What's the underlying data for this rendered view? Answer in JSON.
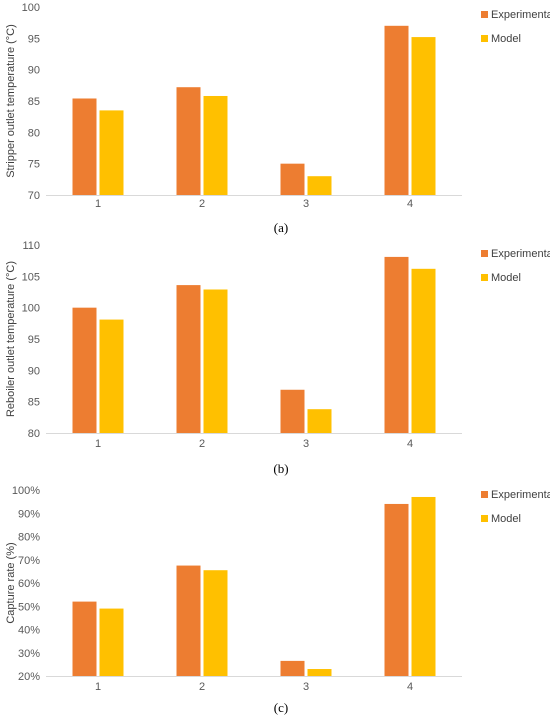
{
  "colors": {
    "experimental": "#ED7D31",
    "model": "#FFC000",
    "axis": "#D9D9D9",
    "text": "#595959"
  },
  "chart_data": [
    {
      "type": "bar",
      "panel_label": "(a)",
      "categories": [
        "1",
        "2",
        "3",
        "4"
      ],
      "series": [
        {
          "name": "Experimental",
          "values": [
            85.4,
            87.2,
            75.0,
            97.0
          ]
        },
        {
          "name": "Model",
          "values": [
            83.5,
            85.8,
            73.0,
            95.2
          ]
        }
      ],
      "ylabel": "Stripper outlet temperature (°C)",
      "xlabel": "",
      "ylim": [
        70,
        100
      ],
      "yticks": [
        70,
        75,
        80,
        85,
        90,
        95,
        100
      ],
      "ytick_labels": [
        "70",
        "75",
        "80",
        "85",
        "90",
        "95",
        "100"
      ],
      "grid": false,
      "legend": "right"
    },
    {
      "type": "bar",
      "panel_label": "(b)",
      "categories": [
        "1",
        "2",
        "3",
        "4"
      ],
      "series": [
        {
          "name": "Experimental",
          "values": [
            100.0,
            103.6,
            86.9,
            108.1
          ]
        },
        {
          "name": "Model",
          "values": [
            98.1,
            102.9,
            83.8,
            106.2
          ]
        }
      ],
      "ylabel": "Reboiler outlet temperature (°C)",
      "xlabel": "",
      "ylim": [
        80,
        110
      ],
      "yticks": [
        80,
        85,
        90,
        95,
        100,
        105,
        110
      ],
      "ytick_labels": [
        "80",
        "85",
        "90",
        "95",
        "100",
        "105",
        "110"
      ],
      "grid": false,
      "legend": "right"
    },
    {
      "type": "bar",
      "panel_label": "(c)",
      "categories": [
        "1",
        "2",
        "3",
        "4"
      ],
      "series": [
        {
          "name": "Experimental",
          "values": [
            52,
            67.5,
            26.5,
            94
          ]
        },
        {
          "name": "Model",
          "values": [
            49,
            65.5,
            23,
            97
          ]
        }
      ],
      "ylabel": "Capture rate (%)",
      "xlabel": "",
      "ylim": [
        20,
        100
      ],
      "yticks": [
        20,
        30,
        40,
        50,
        60,
        70,
        80,
        90,
        100
      ],
      "ytick_labels": [
        "20%",
        "30%",
        "40%",
        "50%",
        "60%",
        "70%",
        "80%",
        "90%",
        "100%"
      ],
      "grid": false,
      "legend": "right"
    }
  ]
}
